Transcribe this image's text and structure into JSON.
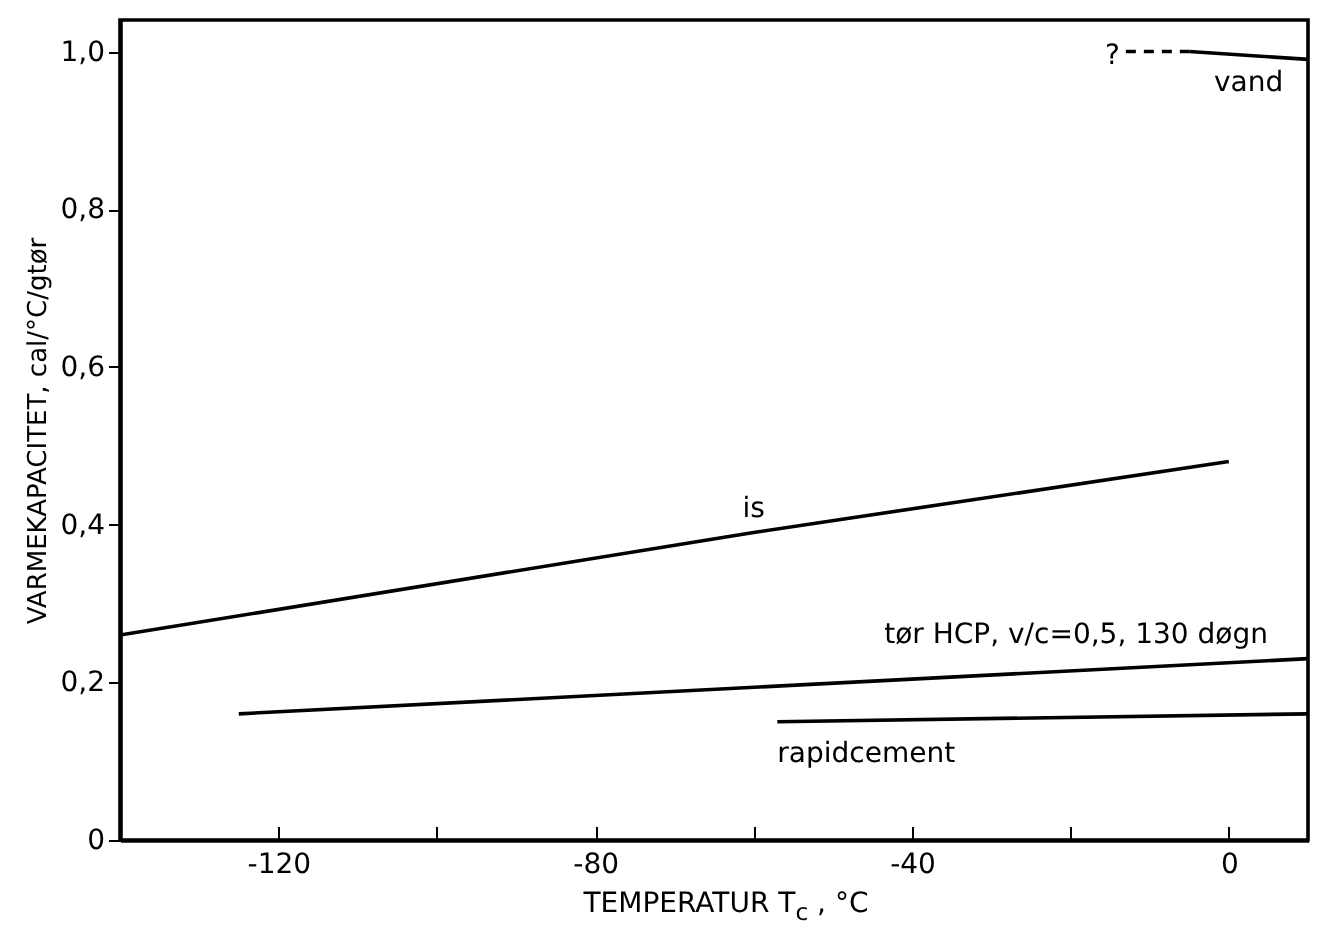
{
  "chart_data": {
    "type": "line",
    "xlabel": "TEMPERATUR  T$_{c}$ ,  °C",
    "ylabel": "VARMEKAPACITET, cal/°C/gtør",
    "xlim": [
      -140,
      10
    ],
    "ylim": [
      0,
      1.04
    ],
    "xticks": [
      -120,
      {
        "value": -100,
        "label": null
      },
      -80,
      {
        "value": -60,
        "label": null
      },
      -40,
      {
        "value": -20,
        "label": null
      },
      0
    ],
    "yticks": [
      0,
      {
        "value": 0.2,
        "label": "0,2"
      },
      {
        "value": 0.4,
        "label": "0,4"
      },
      {
        "value": 0.6,
        "label": "0,6"
      },
      {
        "value": 0.8,
        "label": "0,8"
      },
      {
        "value": 1.0,
        "label": "1,0"
      }
    ],
    "grid": false,
    "marker": "none",
    "series": [
      {
        "name": "vand",
        "color": "#000000",
        "x": [
          -5,
          10
        ],
        "values": [
          1.0,
          0.99
        ]
      },
      {
        "color": "#000000",
        "x": [
          -13,
          -5
        ],
        "values": [
          1.0,
          1.0
        ],
        "line_style": "dashed"
      },
      {
        "name": "is",
        "color": "#000000",
        "x": [
          -140,
          -60,
          0
        ],
        "values": [
          0.26,
          0.39,
          0.48
        ]
      },
      {
        "name": "tør HCP, v/c=0,5, 130 døgn",
        "color": "#000000",
        "x": [
          -125,
          10
        ],
        "values": [
          0.16,
          0.23
        ]
      },
      {
        "name": "rapidcement",
        "color": "#000000",
        "x": [
          -57,
          10
        ],
        "values": [
          0.15,
          0.16
        ]
      }
    ],
    "annotations": [
      {
        "text": "?",
        "x": -13,
        "y": 1.0
      }
    ]
  }
}
